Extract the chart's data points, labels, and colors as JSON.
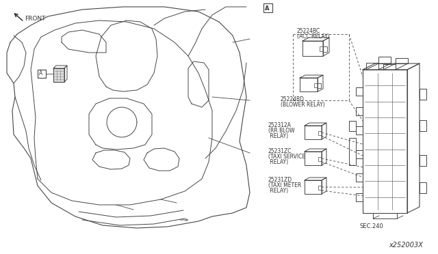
{
  "bg_color": "#ffffff",
  "line_color": "#444444",
  "text_color": "#333333",
  "fig_width": 6.4,
  "fig_height": 3.72,
  "dpi": 100,
  "diagram_label_A": "A",
  "front_label": "FRONT",
  "sec_label": "SEC.240",
  "part_number": "x252003X",
  "acc_relay_id": "25224BC",
  "acc_relay_name": "(ACC RELAY)",
  "blower_relay_id": "25224BD",
  "blower_relay_name": "(BLOWER RELAY)",
  "rr_blow_id": "252312A",
  "rr_blow_name1": "(RR BLOW",
  "rr_blow_name2": " RELAY)",
  "taxi_svc_id": "25231ZC",
  "taxi_svc_name1": "(TAXI SERVICE",
  "taxi_svc_name2": " RELAY)",
  "taxi_mtr_id": "25231ZD",
  "taxi_mtr_name1": "(TAXI METER",
  "taxi_mtr_name2": " RELAY)"
}
